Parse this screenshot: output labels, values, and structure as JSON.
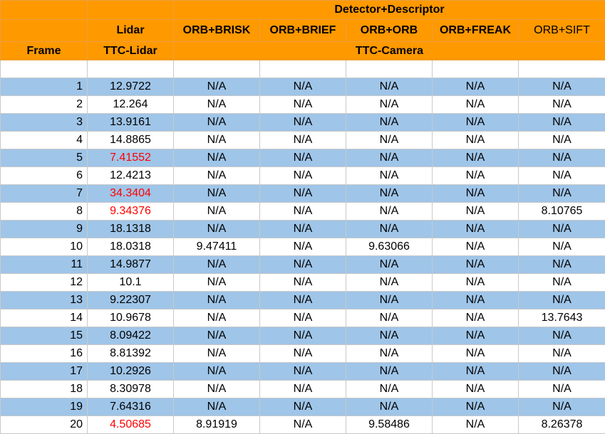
{
  "header": {
    "group_title": "Detector+Descriptor",
    "lidar_label": "Lidar",
    "frame_label": "Frame",
    "ttc_lidar_label": "TTC-Lidar",
    "ttc_camera_label": "TTC-Camera",
    "combos": [
      "ORB+BRISK",
      "ORB+BRIEF",
      "ORB+ORB",
      "ORB+FREAK",
      "ORB+SIFT"
    ]
  },
  "rows": [
    {
      "frame": "1",
      "lidar": "12.9722",
      "cam": [
        "N/A",
        "N/A",
        "N/A",
        "N/A",
        "N/A"
      ]
    },
    {
      "frame": "2",
      "lidar": "12.264",
      "cam": [
        "N/A",
        "N/A",
        "N/A",
        "N/A",
        "N/A"
      ]
    },
    {
      "frame": "3",
      "lidar": "13.9161",
      "cam": [
        "N/A",
        "N/A",
        "N/A",
        "N/A",
        "N/A"
      ]
    },
    {
      "frame": "4",
      "lidar": "14.8865",
      "cam": [
        "N/A",
        "N/A",
        "N/A",
        "N/A",
        "N/A"
      ]
    },
    {
      "frame": "5",
      "lidar": "7.41552",
      "cam": [
        "N/A",
        "N/A",
        "N/A",
        "N/A",
        "N/A"
      ]
    },
    {
      "frame": "6",
      "lidar": "12.4213",
      "cam": [
        "N/A",
        "N/A",
        "N/A",
        "N/A",
        "N/A"
      ]
    },
    {
      "frame": "7",
      "lidar": "34.3404",
      "cam": [
        "N/A",
        "N/A",
        "N/A",
        "N/A",
        "N/A"
      ]
    },
    {
      "frame": "8",
      "lidar": "9.34376",
      "cam": [
        "N/A",
        "N/A",
        "N/A",
        "N/A",
        "8.10765"
      ]
    },
    {
      "frame": "9",
      "lidar": "18.1318",
      "cam": [
        "N/A",
        "N/A",
        "N/A",
        "N/A",
        "N/A"
      ]
    },
    {
      "frame": "10",
      "lidar": "18.0318",
      "cam": [
        "9.47411",
        "N/A",
        "9.63066",
        "N/A",
        "N/A"
      ]
    },
    {
      "frame": "11",
      "lidar": "14.9877",
      "cam": [
        "N/A",
        "N/A",
        "N/A",
        "N/A",
        "N/A"
      ]
    },
    {
      "frame": "12",
      "lidar": "10.1",
      "cam": [
        "N/A",
        "N/A",
        "N/A",
        "N/A",
        "N/A"
      ]
    },
    {
      "frame": "13",
      "lidar": "9.22307",
      "cam": [
        "N/A",
        "N/A",
        "N/A",
        "N/A",
        "N/A"
      ]
    },
    {
      "frame": "14",
      "lidar": "10.9678",
      "cam": [
        "N/A",
        "N/A",
        "N/A",
        "N/A",
        "13.7643"
      ]
    },
    {
      "frame": "15",
      "lidar": "8.09422",
      "cam": [
        "N/A",
        "N/A",
        "N/A",
        "N/A",
        "N/A"
      ]
    },
    {
      "frame": "16",
      "lidar": "8.81392",
      "cam": [
        "N/A",
        "N/A",
        "N/A",
        "N/A",
        "N/A"
      ]
    },
    {
      "frame": "17",
      "lidar": "10.2926",
      "cam": [
        "N/A",
        "N/A",
        "N/A",
        "N/A",
        "N/A"
      ]
    },
    {
      "frame": "18",
      "lidar": "8.30978",
      "cam": [
        "N/A",
        "N/A",
        "N/A",
        "N/A",
        "N/A"
      ]
    },
    {
      "frame": "19",
      "lidar": "7.64316",
      "cam": [
        "N/A",
        "N/A",
        "N/A",
        "N/A",
        "N/A"
      ]
    },
    {
      "frame": "20",
      "lidar": "4.50685",
      "cam": [
        "8.91919",
        "N/A",
        "9.58486",
        "N/A",
        "8.26378"
      ]
    }
  ],
  "highlight": {
    "color": "#ff0000",
    "frames": [
      "5",
      "7",
      "8",
      "20"
    ]
  },
  "colors": {
    "header_bg": "#ff9900",
    "stripe_bg": "#9fc5e8",
    "plain_bg": "#ffffff"
  }
}
